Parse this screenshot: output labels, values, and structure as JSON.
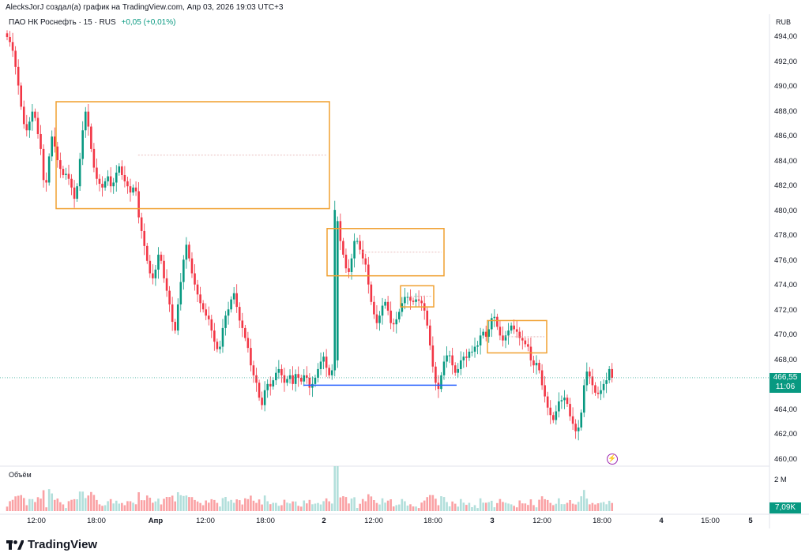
{
  "header": {
    "caption": "AlecksJorJ создал(а) график на TradingView.com, Апр 03, 2026 19:03 UTC+3",
    "symbol": "ПАО НК Роснефть · 15 · RUS",
    "change": "+0,05 (+0,01%)"
  },
  "price_axis": {
    "currency": "RUB",
    "labels": [
      "494,00",
      "492,00",
      "490,00",
      "488,00",
      "486,00",
      "484,00",
      "482,00",
      "480,00",
      "478,00",
      "476,00",
      "474,00",
      "472,00",
      "470,00",
      "468,00",
      "466,00",
      "464,00",
      "462,00",
      "460,00"
    ],
    "last_price": "466,55",
    "countdown": "11:06"
  },
  "time_axis": {
    "labels": [
      "12:00",
      "18:00",
      "Апр",
      "12:00",
      "18:00",
      "2",
      "12:00",
      "18:00",
      "3",
      "12:00",
      "18:00",
      "4",
      "15:00",
      "5"
    ]
  },
  "volume": {
    "title": "Объём",
    "scale_label": "2 M",
    "last_value": "7,09K"
  },
  "branding": {
    "name": "TradingView"
  },
  "colors": {
    "up": "#089981",
    "down": "#f23645",
    "zone": "#f0a030",
    "level": "#2962ff",
    "volume_up": "#b2dfdb",
    "volume_down": "#faa1a4"
  },
  "chart_data": {
    "type": "candlestick",
    "symbol": "ПАО НК Роснефть",
    "interval": "15",
    "ylim": [
      460,
      495
    ],
    "series": [
      {
        "name": "Price",
        "values": [
          494.0,
          493.6,
          492.9,
          491.6,
          490.1,
          488.4,
          487.0,
          486.5,
          487.2,
          488.0,
          487.5,
          486.2,
          485.0,
          482.5,
          482.3,
          484.4,
          486.0,
          485.2,
          484.1,
          483.4,
          482.9,
          483.0,
          482.6,
          481.9,
          481.0,
          482.0,
          484.2,
          486.5,
          488.0,
          486.8,
          485.0,
          483.5,
          482.6,
          482.2,
          481.9,
          482.4,
          482.8,
          482.0,
          482.3,
          483.1,
          483.6,
          482.9,
          482.4,
          482.0,
          481.5,
          481.9,
          481.6,
          479.5,
          478.4,
          477.2,
          476.0,
          475.0,
          474.6,
          475.3,
          476.5,
          476.0,
          474.6,
          473.6,
          472.5,
          471.1,
          470.4,
          472.5,
          474.3,
          476.1,
          477.3,
          476.2,
          475.0,
          474.1,
          473.3,
          472.6,
          472.1,
          471.6,
          471.3,
          470.4,
          469.5,
          468.9,
          469.1,
          470.6,
          471.6,
          472.1,
          472.9,
          473.4,
          472.3,
          471.2,
          470.6,
          469.8,
          469.0,
          467.6,
          466.8,
          466.2,
          465.0,
          464.4,
          465.6,
          466.1,
          465.9,
          466.4,
          467.0,
          467.3,
          466.8,
          466.2,
          466.5,
          466.8,
          466.1,
          466.9,
          466.6,
          466.3,
          466.8,
          466.6,
          465.8,
          466.1,
          466.6,
          467.3,
          467.9,
          468.3,
          467.4,
          466.8,
          467.2,
          480.1,
          479.2,
          477.6,
          476.5,
          475.4,
          475.1,
          476.2,
          477.6,
          477.6,
          476.9,
          476.2,
          475.7,
          474.1,
          472.7,
          471.7,
          471.0,
          471.6,
          472.4,
          472.7,
          472.0,
          471.0,
          470.9,
          471.3,
          471.9,
          472.6,
          473.1,
          473.1,
          472.8,
          472.7,
          472.9,
          472.8,
          472.6,
          472.0,
          470.8,
          469.2,
          467.5,
          466.2,
          465.7,
          466.8,
          467.9,
          468.4,
          468.4,
          467.6,
          467.0,
          467.3,
          468.0,
          468.3,
          468.2,
          468.7,
          468.7,
          469.1,
          469.2,
          470.0,
          470.3,
          469.9,
          470.5,
          471.4,
          471.5,
          470.7,
          470.0,
          469.6,
          470.0,
          470.4,
          470.8,
          470.5,
          470.3,
          469.8,
          469.6,
          469.3,
          469.1,
          468.0,
          467.6,
          467.8,
          467.2,
          466.0,
          465.1,
          464.2,
          463.6,
          463.2,
          463.9,
          464.7,
          464.8,
          465.0,
          464.5,
          463.5,
          462.9,
          462.3,
          462.6,
          463.8,
          466.0,
          467.1,
          466.7,
          466.0,
          465.4,
          465.3,
          465.6,
          466.1,
          466.4,
          467.3,
          466.6
        ]
      }
    ],
    "annotations": [
      {
        "type": "box",
        "price_range": [
          480.2,
          488.8
        ]
      },
      {
        "type": "box",
        "price_range": [
          474.8,
          478.6
        ]
      },
      {
        "type": "box",
        "price_range": [
          472.3,
          474.0
        ]
      },
      {
        "type": "box",
        "price_range": [
          468.6,
          471.2
        ]
      },
      {
        "type": "hline",
        "price": 466.0
      }
    ]
  }
}
